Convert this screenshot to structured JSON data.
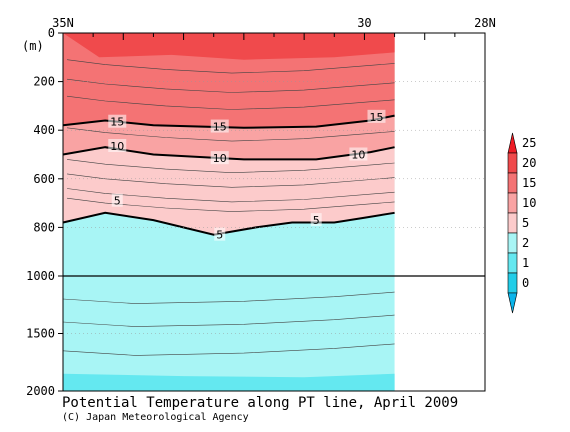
{
  "chart_data": {
    "type": "contour",
    "title": "Potential Temperature along PT line, April 2009",
    "credit": "(C) Japan Meteorological Agency",
    "x_axis": {
      "position": "top",
      "ticks": [
        {
          "value": 35,
          "label": "35N"
        },
        {
          "value": 30,
          "label": "30"
        },
        {
          "value": 28,
          "label": "28N"
        }
      ],
      "range": [
        35,
        28
      ],
      "data_extent": [
        35,
        29.5
      ]
    },
    "y_axis": {
      "unit_label": "(m)",
      "ticks": [
        {
          "value": 0,
          "label": "0"
        },
        {
          "value": 200,
          "label": "200"
        },
        {
          "value": 400,
          "label": "400"
        },
        {
          "value": 600,
          "label": "600"
        },
        {
          "value": 800,
          "label": "800"
        },
        {
          "value": 1000,
          "label": "1000"
        },
        {
          "value": 1500,
          "label": "1500"
        },
        {
          "value": 2000,
          "label": "2000"
        }
      ],
      "scale_break_at": 1000
    },
    "colorbar": {
      "labels": [
        "25",
        "20",
        "15",
        "10",
        "5",
        "2",
        "1",
        "0"
      ],
      "colors": [
        "#ee1c25",
        "#f04a4c",
        "#f47374",
        "#f9a3a3",
        "#fccbcb",
        "#a8f5f5",
        "#64e8f0",
        "#22cde8",
        "#0ab4ea"
      ]
    },
    "labeled_contours": [
      {
        "value": 15,
        "label": "15",
        "depths": [
          [
            35,
            380
          ],
          [
            34.3,
            360
          ],
          [
            33.5,
            380
          ],
          [
            32,
            390
          ],
          [
            30.8,
            385
          ],
          [
            29.9,
            360
          ],
          [
            29.5,
            340
          ]
        ]
      },
      {
        "value": 10,
        "label": "10",
        "depths": [
          [
            35,
            500
          ],
          [
            34.3,
            470
          ],
          [
            33.5,
            500
          ],
          [
            32,
            520
          ],
          [
            30.8,
            520
          ],
          [
            29.9,
            490
          ],
          [
            29.5,
            470
          ]
        ]
      },
      {
        "value": 5,
        "label": "5",
        "depths": [
          [
            35,
            780
          ],
          [
            34.3,
            740
          ],
          [
            33.5,
            770
          ],
          [
            32.5,
            830
          ],
          [
            31.8,
            800
          ],
          [
            31.2,
            780
          ],
          [
            30.5,
            780
          ],
          [
            30,
            760
          ],
          [
            29.5,
            740
          ]
        ]
      }
    ],
    "contour_labels": [
      {
        "text": "15",
        "lat": 34.1,
        "depth": 365
      },
      {
        "text": "15",
        "lat": 32.4,
        "depth": 385
      },
      {
        "text": "15",
        "lat": 29.8,
        "depth": 345
      },
      {
        "text": "10",
        "lat": 34.1,
        "depth": 465
      },
      {
        "text": "10",
        "lat": 32.4,
        "depth": 515
      },
      {
        "text": "10",
        "lat": 30.1,
        "depth": 500
      },
      {
        "text": "5",
        "lat": 34.1,
        "depth": 690
      },
      {
        "text": "5",
        "lat": 32.4,
        "depth": 830
      },
      {
        "text": "5",
        "lat": 30.8,
        "depth": 770
      }
    ]
  }
}
